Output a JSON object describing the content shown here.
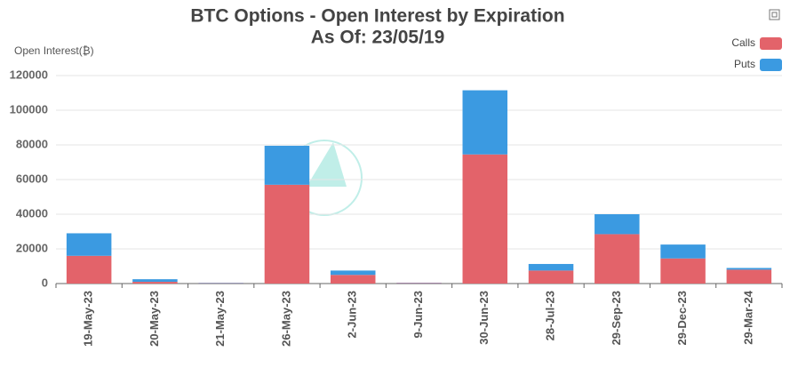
{
  "chart_data": {
    "type": "stacked_bar",
    "title": "BTC Options - Open Interest by Expiration",
    "subtitle": "As Of: 23/05/19",
    "y_label": "Open Interest(₿)",
    "categories": [
      "19-May-23",
      "20-May-23",
      "21-May-23",
      "26-May-23",
      "2-Jun-23",
      "9-Jun-23",
      "30-Jun-23",
      "28-Jul-23",
      "29-Sep-23",
      "29-Dec-23",
      "29-Mar-24"
    ],
    "series": [
      {
        "name": "Calls",
        "color": "#e3636a",
        "values": [
          16000,
          1000,
          200,
          57000,
          5000,
          300,
          74500,
          7500,
          28500,
          14500,
          8000
        ]
      },
      {
        "name": "Puts",
        "color": "#3b9ae1",
        "values": [
          13000,
          1500,
          200,
          22500,
          2500,
          200,
          37000,
          3800,
          11500,
          8000,
          1000
        ]
      }
    ],
    "ylim": [
      0,
      120000
    ],
    "yticks": [
      0,
      20000,
      40000,
      60000,
      80000,
      100000,
      120000
    ],
    "grid": true
  }
}
